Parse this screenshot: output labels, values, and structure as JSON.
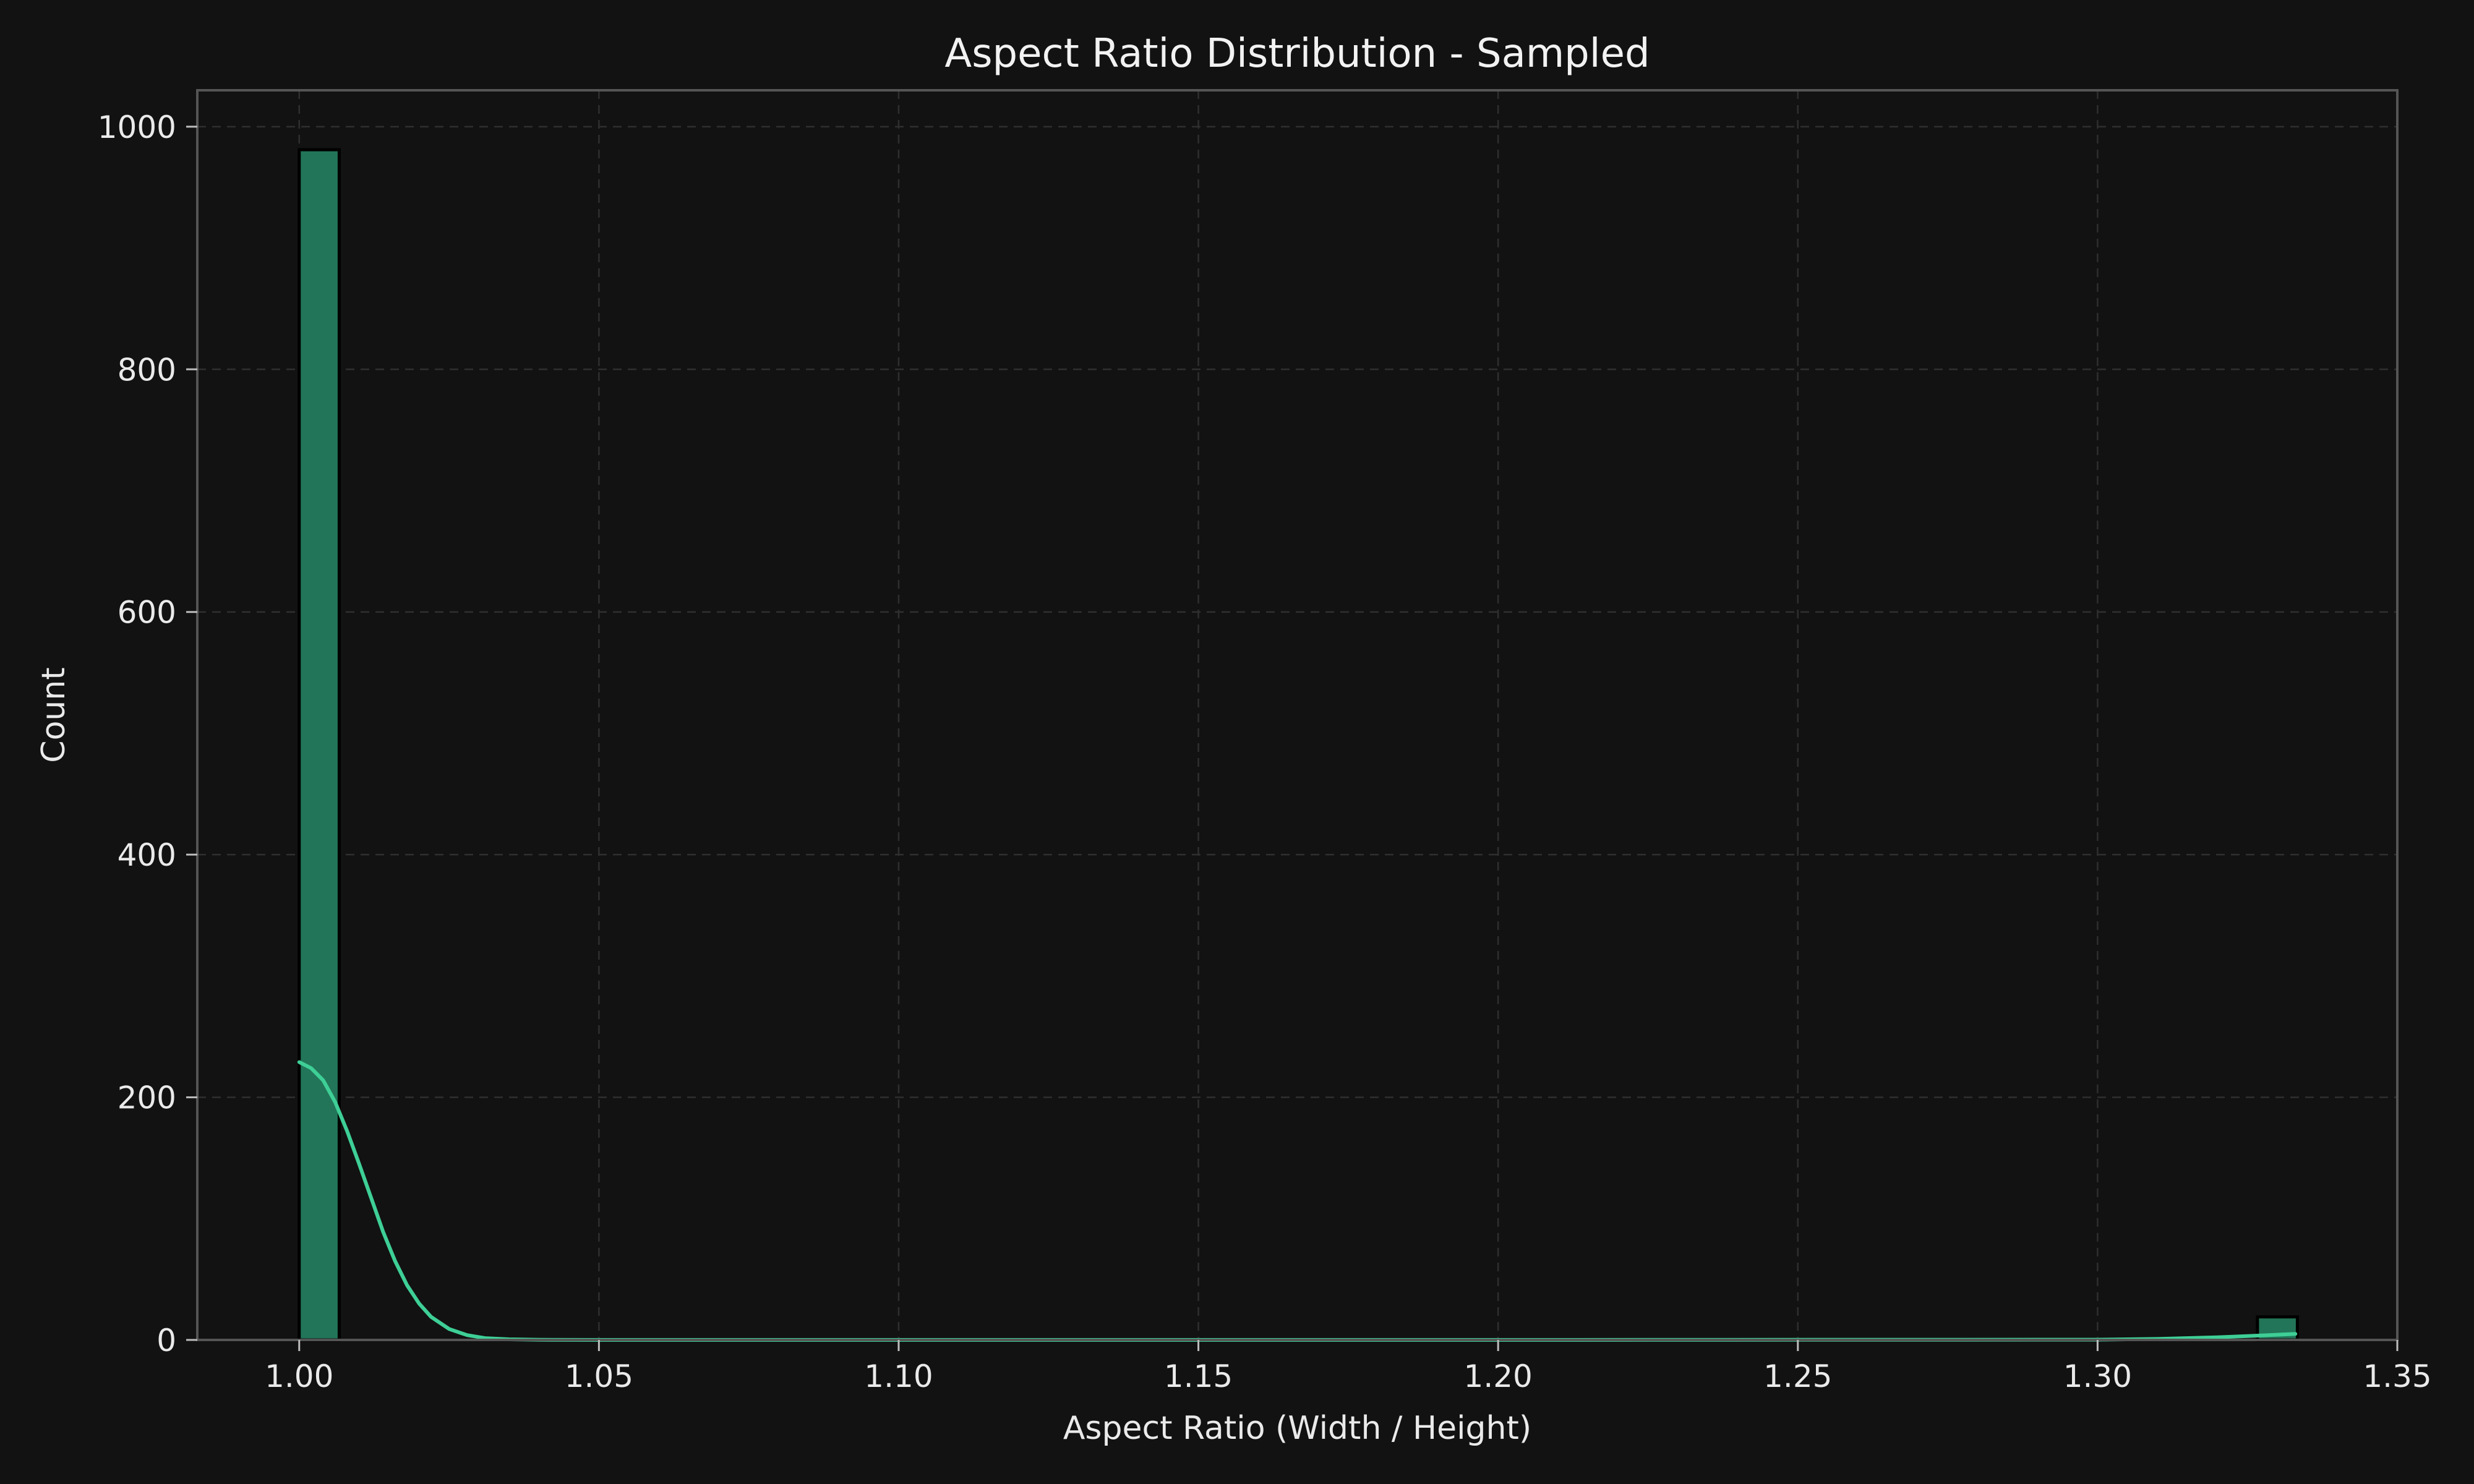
{
  "chart_data": {
    "type": "bar",
    "title": "Aspect Ratio Distribution - Sampled",
    "xlabel": "Aspect Ratio (Width / Height)",
    "ylabel": "Count",
    "xlim": [
      0.983,
      1.35
    ],
    "ylim": [
      0,
      1030
    ],
    "xticks": [
      "1.00",
      "1.05",
      "1.10",
      "1.15",
      "1.20",
      "1.25",
      "1.30",
      "1.35"
    ],
    "yticks": [
      "0",
      "200",
      "400",
      "600",
      "800",
      "1000"
    ],
    "grid": true,
    "bin_width": 0.00667,
    "bars": [
      {
        "x0": 1.0,
        "x1": 1.00667,
        "count": 981
      },
      {
        "x0": 1.32667,
        "x1": 1.33333,
        "count": 19
      }
    ],
    "kde": {
      "x": [
        1.0,
        1.002,
        1.004,
        1.006,
        1.008,
        1.01,
        1.012,
        1.014,
        1.016,
        1.018,
        1.02,
        1.022,
        1.025,
        1.028,
        1.031,
        1.035,
        1.04,
        1.05,
        1.1,
        1.2,
        1.3,
        1.31,
        1.32,
        1.325,
        1.33,
        1.333
      ],
      "y": [
        229,
        224,
        214,
        196,
        172,
        145,
        117,
        89,
        65,
        45,
        30,
        19,
        9,
        4,
        1.5,
        0.5,
        0.1,
        0,
        0,
        0,
        0.2,
        0.8,
        2.2,
        3.2,
        4.3,
        5
      ]
    },
    "colors": {
      "background": "#121212",
      "bar_fill": "#227558",
      "kde_line": "#3ecf96",
      "text": "#eaeaea"
    }
  }
}
